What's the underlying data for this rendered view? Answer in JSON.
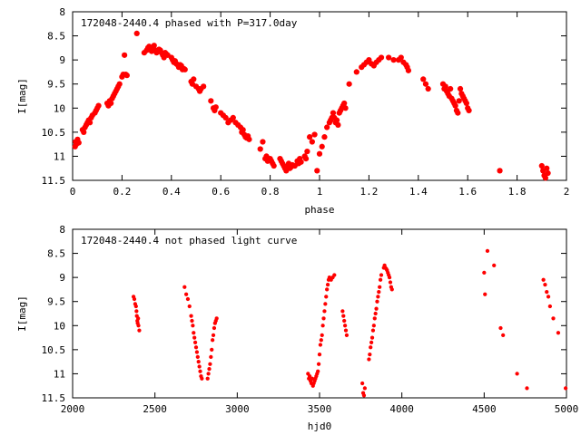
{
  "chart_data": [
    {
      "type": "scatter",
      "title": "172048-2440.4 phased with P=317.0day",
      "xlabel": "phase",
      "ylabel": "I[mag]",
      "xlim": [
        0,
        2
      ],
      "ylim": [
        8,
        11.5
      ],
      "y_inverted": true,
      "grid": false,
      "marker_color": "#ff0000",
      "x_ticks": [
        0,
        0.2,
        0.4,
        0.6,
        0.8,
        1,
        1.2,
        1.4,
        1.6,
        1.8,
        2
      ],
      "x_tick_labels": [
        "0",
        "0.2",
        "0.4",
        "0.6",
        "0.8",
        "1",
        "1.2",
        "1.4",
        "1.6",
        "1.8",
        "2"
      ],
      "y_ticks": [
        8,
        8.5,
        9,
        9.5,
        10,
        10.5,
        11,
        11.5
      ],
      "y_tick_labels": [
        "8",
        "8.5",
        "9",
        "9.5",
        "10",
        "10.5",
        "11",
        "11.5"
      ],
      "points": [
        [
          0.01,
          10.8
        ],
        [
          0.012,
          10.7
        ],
        [
          0.015,
          10.75
        ],
        [
          0.02,
          10.65
        ],
        [
          0.025,
          10.72
        ],
        [
          0.04,
          10.45
        ],
        [
          0.045,
          10.5
        ],
        [
          0.05,
          10.4
        ],
        [
          0.055,
          10.35
        ],
        [
          0.06,
          10.3
        ],
        [
          0.065,
          10.25
        ],
        [
          0.07,
          10.3
        ],
        [
          0.075,
          10.2
        ],
        [
          0.08,
          10.15
        ],
        [
          0.09,
          10.1
        ],
        [
          0.095,
          10.05
        ],
        [
          0.1,
          10.0
        ],
        [
          0.105,
          9.95
        ],
        [
          0.14,
          9.9
        ],
        [
          0.145,
          9.95
        ],
        [
          0.15,
          9.85
        ],
        [
          0.155,
          9.9
        ],
        [
          0.16,
          9.8
        ],
        [
          0.165,
          9.75
        ],
        [
          0.17,
          9.7
        ],
        [
          0.175,
          9.65
        ],
        [
          0.18,
          9.6
        ],
        [
          0.185,
          9.55
        ],
        [
          0.19,
          9.5
        ],
        [
          0.2,
          9.35
        ],
        [
          0.205,
          9.3
        ],
        [
          0.21,
          8.9
        ],
        [
          0.215,
          9.3
        ],
        [
          0.22,
          9.32
        ],
        [
          0.26,
          8.45
        ],
        [
          0.29,
          8.85
        ],
        [
          0.3,
          8.8
        ],
        [
          0.305,
          8.75
        ],
        [
          0.31,
          8.72
        ],
        [
          0.315,
          8.78
        ],
        [
          0.32,
          8.82
        ],
        [
          0.325,
          8.75
        ],
        [
          0.33,
          8.7
        ],
        [
          0.335,
          8.8
        ],
        [
          0.34,
          8.85
        ],
        [
          0.345,
          8.82
        ],
        [
          0.35,
          8.78
        ],
        [
          0.355,
          8.8
        ],
        [
          0.36,
          8.85
        ],
        [
          0.365,
          8.9
        ],
        [
          0.37,
          8.95
        ],
        [
          0.375,
          8.85
        ],
        [
          0.38,
          8.88
        ],
        [
          0.385,
          8.9
        ],
        [
          0.4,
          8.95
        ],
        [
          0.405,
          9.0
        ],
        [
          0.41,
          9.05
        ],
        [
          0.415,
          9.02
        ],
        [
          0.42,
          9.08
        ],
        [
          0.425,
          9.1
        ],
        [
          0.43,
          9.15
        ],
        [
          0.435,
          9.1
        ],
        [
          0.44,
          9.12
        ],
        [
          0.445,
          9.2
        ],
        [
          0.45,
          9.18
        ],
        [
          0.455,
          9.2
        ],
        [
          0.48,
          9.45
        ],
        [
          0.485,
          9.5
        ],
        [
          0.49,
          9.4
        ],
        [
          0.5,
          9.55
        ],
        [
          0.51,
          9.6
        ],
        [
          0.515,
          9.65
        ],
        [
          0.52,
          9.6
        ],
        [
          0.53,
          9.55
        ],
        [
          0.56,
          9.85
        ],
        [
          0.57,
          10.0
        ],
        [
          0.575,
          10.05
        ],
        [
          0.58,
          9.98
        ],
        [
          0.6,
          10.1
        ],
        [
          0.61,
          10.15
        ],
        [
          0.62,
          10.2
        ],
        [
          0.63,
          10.3
        ],
        [
          0.64,
          10.25
        ],
        [
          0.65,
          10.2
        ],
        [
          0.66,
          10.3
        ],
        [
          0.67,
          10.35
        ],
        [
          0.68,
          10.4
        ],
        [
          0.685,
          10.5
        ],
        [
          0.69,
          10.45
        ],
        [
          0.695,
          10.55
        ],
        [
          0.7,
          10.6
        ],
        [
          0.705,
          10.62
        ],
        [
          0.71,
          10.58
        ],
        [
          0.715,
          10.65
        ],
        [
          0.76,
          10.85
        ],
        [
          0.77,
          10.7
        ],
        [
          0.78,
          11.05
        ],
        [
          0.785,
          11.0
        ],
        [
          0.79,
          11.1
        ],
        [
          0.8,
          11.05
        ],
        [
          0.805,
          11.1
        ],
        [
          0.81,
          11.15
        ],
        [
          0.815,
          11.2
        ],
        [
          0.84,
          11.05
        ],
        [
          0.845,
          11.1
        ],
        [
          0.85,
          11.15
        ],
        [
          0.855,
          11.2
        ],
        [
          0.86,
          11.25
        ],
        [
          0.865,
          11.3
        ],
        [
          0.87,
          11.2
        ],
        [
          0.875,
          11.15
        ],
        [
          0.88,
          11.25
        ],
        [
          0.885,
          11.22
        ],
        [
          0.89,
          11.18
        ],
        [
          0.9,
          11.2
        ],
        [
          0.91,
          11.1
        ],
        [
          0.915,
          11.15
        ],
        [
          0.92,
          11.05
        ],
        [
          0.925,
          11.12
        ],
        [
          0.94,
          11.0
        ],
        [
          0.945,
          11.05
        ],
        [
          0.95,
          10.9
        ],
        [
          0.96,
          10.6
        ],
        [
          0.97,
          10.7
        ],
        [
          0.98,
          10.55
        ],
        [
          0.99,
          11.3
        ],
        [
          1.0,
          10.95
        ],
        [
          1.01,
          10.8
        ],
        [
          1.02,
          10.6
        ],
        [
          1.03,
          10.4
        ],
        [
          1.04,
          10.3
        ],
        [
          1.045,
          10.25
        ],
        [
          1.05,
          10.2
        ],
        [
          1.055,
          10.1
        ],
        [
          1.06,
          10.2
        ],
        [
          1.065,
          10.3
        ],
        [
          1.07,
          10.25
        ],
        [
          1.075,
          10.35
        ],
        [
          1.08,
          10.1
        ],
        [
          1.085,
          10.05
        ],
        [
          1.09,
          10.0
        ],
        [
          1.095,
          9.95
        ],
        [
          1.1,
          9.9
        ],
        [
          1.105,
          10.0
        ],
        [
          1.12,
          9.5
        ],
        [
          1.15,
          9.25
        ],
        [
          1.17,
          9.15
        ],
        [
          1.18,
          9.1
        ],
        [
          1.19,
          9.05
        ],
        [
          1.2,
          9.0
        ],
        [
          1.21,
          9.08
        ],
        [
          1.22,
          9.12
        ],
        [
          1.23,
          9.05
        ],
        [
          1.24,
          9.0
        ],
        [
          1.25,
          8.95
        ],
        [
          1.28,
          8.95
        ],
        [
          1.3,
          9.0
        ],
        [
          1.32,
          9.0
        ],
        [
          1.33,
          8.95
        ],
        [
          1.34,
          9.05
        ],
        [
          1.35,
          9.1
        ],
        [
          1.355,
          9.15
        ],
        [
          1.36,
          9.22
        ],
        [
          1.42,
          9.4
        ],
        [
          1.43,
          9.5
        ],
        [
          1.44,
          9.6
        ],
        [
          1.5,
          9.5
        ],
        [
          1.505,
          9.6
        ],
        [
          1.51,
          9.55
        ],
        [
          1.515,
          9.65
        ],
        [
          1.52,
          9.7
        ],
        [
          1.525,
          9.75
        ],
        [
          1.53,
          9.6
        ],
        [
          1.535,
          9.8
        ],
        [
          1.54,
          9.85
        ],
        [
          1.545,
          9.9
        ],
        [
          1.55,
          9.95
        ],
        [
          1.555,
          10.05
        ],
        [
          1.56,
          10.1
        ],
        [
          1.565,
          9.85
        ],
        [
          1.57,
          9.6
        ],
        [
          1.575,
          9.7
        ],
        [
          1.58,
          9.75
        ],
        [
          1.585,
          9.8
        ],
        [
          1.59,
          9.85
        ],
        [
          1.595,
          9.9
        ],
        [
          1.6,
          10.0
        ],
        [
          1.605,
          10.05
        ],
        [
          1.73,
          11.3
        ],
        [
          1.9,
          11.2
        ],
        [
          1.905,
          11.3
        ],
        [
          1.91,
          11.4
        ],
        [
          1.915,
          11.45
        ],
        [
          1.92,
          11.25
        ],
        [
          1.925,
          11.35
        ]
      ]
    },
    {
      "type": "scatter",
      "title": "172048-2440.4 not phased light curve",
      "xlabel": "hjd0",
      "ylabel": "I[mag]",
      "xlim": [
        2000,
        5000
      ],
      "ylim": [
        8,
        11.5
      ],
      "y_inverted": true,
      "grid": false,
      "marker_color": "#ff0000",
      "x_ticks": [
        2000,
        2500,
        3000,
        3500,
        4000,
        4500,
        5000
      ],
      "x_tick_labels": [
        "2000",
        "2500",
        "3000",
        "3500",
        "4000",
        "4500",
        "5000"
      ],
      "y_ticks": [
        8,
        8.5,
        9,
        9.5,
        10,
        10.5,
        11,
        11.5
      ],
      "y_tick_labels": [
        "8",
        "8.5",
        "9",
        "9.5",
        "10",
        "10.5",
        "11",
        "11.5"
      ],
      "points": [
        [
          2370,
          9.4
        ],
        [
          2375,
          9.45
        ],
        [
          2380,
          9.55
        ],
        [
          2385,
          9.6
        ],
        [
          2388,
          9.7
        ],
        [
          2390,
          9.8
        ],
        [
          2393,
          9.9
        ],
        [
          2395,
          9.95
        ],
        [
          2398,
          9.85
        ],
        [
          2400,
          10.0
        ],
        [
          2405,
          10.1
        ],
        [
          2680,
          9.2
        ],
        [
          2690,
          9.35
        ],
        [
          2700,
          9.45
        ],
        [
          2710,
          9.6
        ],
        [
          2720,
          9.8
        ],
        [
          2725,
          9.9
        ],
        [
          2730,
          10.0
        ],
        [
          2735,
          10.15
        ],
        [
          2740,
          10.25
        ],
        [
          2745,
          10.35
        ],
        [
          2750,
          10.45
        ],
        [
          2755,
          10.55
        ],
        [
          2760,
          10.65
        ],
        [
          2765,
          10.75
        ],
        [
          2770,
          10.85
        ],
        [
          2775,
          10.95
        ],
        [
          2780,
          11.05
        ],
        [
          2785,
          11.1
        ],
        [
          2820,
          11.1
        ],
        [
          2825,
          11.0
        ],
        [
          2830,
          10.9
        ],
        [
          2835,
          10.8
        ],
        [
          2840,
          10.65
        ],
        [
          2845,
          10.5
        ],
        [
          2850,
          10.3
        ],
        [
          2855,
          10.2
        ],
        [
          2860,
          10.05
        ],
        [
          2865,
          9.95
        ],
        [
          2870,
          9.9
        ],
        [
          2875,
          9.85
        ],
        [
          3430,
          11.0
        ],
        [
          3435,
          11.1
        ],
        [
          3440,
          11.05
        ],
        [
          3445,
          11.15
        ],
        [
          3450,
          11.2
        ],
        [
          3455,
          11.1
        ],
        [
          3460,
          11.25
        ],
        [
          3465,
          11.2
        ],
        [
          3470,
          11.15
        ],
        [
          3475,
          11.1
        ],
        [
          3480,
          11.05
        ],
        [
          3485,
          11.0
        ],
        [
          3490,
          10.95
        ],
        [
          3495,
          10.8
        ],
        [
          3500,
          10.6
        ],
        [
          3505,
          10.4
        ],
        [
          3510,
          10.3
        ],
        [
          3515,
          10.2
        ],
        [
          3520,
          10.0
        ],
        [
          3525,
          9.85
        ],
        [
          3530,
          9.7
        ],
        [
          3535,
          9.55
        ],
        [
          3540,
          9.4
        ],
        [
          3545,
          9.25
        ],
        [
          3550,
          9.15
        ],
        [
          3555,
          9.05
        ],
        [
          3560,
          9.0
        ],
        [
          3570,
          9.05
        ],
        [
          3580,
          9.0
        ],
        [
          3590,
          8.95
        ],
        [
          3640,
          9.7
        ],
        [
          3645,
          9.8
        ],
        [
          3650,
          9.9
        ],
        [
          3655,
          10.0
        ],
        [
          3660,
          10.1
        ],
        [
          3665,
          10.2
        ],
        [
          3760,
          11.2
        ],
        [
          3765,
          11.4
        ],
        [
          3770,
          11.45
        ],
        [
          3775,
          11.3
        ],
        [
          3800,
          10.7
        ],
        [
          3805,
          10.6
        ],
        [
          3810,
          10.45
        ],
        [
          3815,
          10.35
        ],
        [
          3820,
          10.25
        ],
        [
          3825,
          10.1
        ],
        [
          3830,
          10.0
        ],
        [
          3835,
          9.85
        ],
        [
          3840,
          9.75
        ],
        [
          3845,
          9.65
        ],
        [
          3850,
          9.5
        ],
        [
          3855,
          9.4
        ],
        [
          3860,
          9.3
        ],
        [
          3865,
          9.2
        ],
        [
          3870,
          9.05
        ],
        [
          3875,
          8.95
        ],
        [
          3890,
          8.8
        ],
        [
          3895,
          8.75
        ],
        [
          3900,
          8.8
        ],
        [
          3905,
          8.82
        ],
        [
          3910,
          8.85
        ],
        [
          3915,
          8.9
        ],
        [
          3920,
          8.95
        ],
        [
          3925,
          9.0
        ],
        [
          3930,
          9.1
        ],
        [
          3935,
          9.2
        ],
        [
          3940,
          9.25
        ],
        [
          4500,
          8.9
        ],
        [
          4505,
          9.35
        ],
        [
          4520,
          8.45
        ],
        [
          4560,
          8.75
        ],
        [
          4600,
          10.05
        ],
        [
          4615,
          10.2
        ],
        [
          4700,
          11.0
        ],
        [
          4760,
          11.3
        ],
        [
          4860,
          9.05
        ],
        [
          4870,
          9.15
        ],
        [
          4880,
          9.3
        ],
        [
          4890,
          9.4
        ],
        [
          4900,
          9.6
        ],
        [
          4920,
          9.85
        ],
        [
          4950,
          10.15
        ],
        [
          4995,
          11.3
        ]
      ]
    }
  ]
}
